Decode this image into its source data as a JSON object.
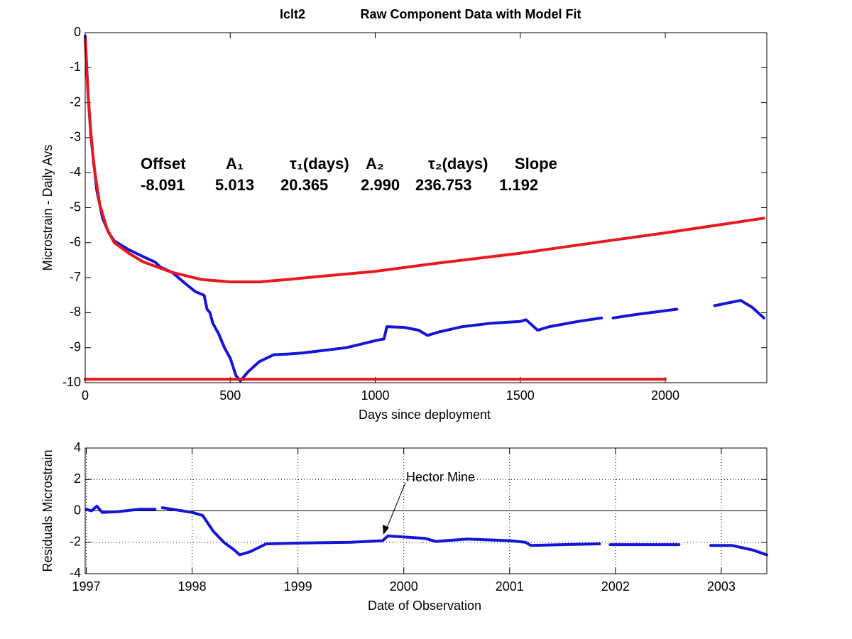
{
  "chart_data": [
    {
      "type": "line",
      "title": "Iclt2",
      "subtitle": "Raw Component Data with Model Fit",
      "x_label": "Days since deployment",
      "y_label": "Microstrain - Daily Avs",
      "xlim": [
        0,
        2350
      ],
      "xticks": [
        0,
        500,
        1000,
        1500,
        2000
      ],
      "ylim": [
        -10,
        0
      ],
      "yticks": [
        0,
        -1,
        -2,
        -3,
        -4,
        -5,
        -6,
        -7,
        -8,
        -9,
        -10
      ],
      "grid": false,
      "fit_parameters": {
        "names": [
          "Offset",
          "A₁",
          "τ₁(days)",
          "A₂",
          "τ₂(days)",
          "Slope"
        ],
        "values": [
          -8.091,
          5.013,
          20.365,
          {
            "value": 2.99,
            "label": "2.990"
          },
          236.753,
          1.192
        ]
      },
      "series": [
        {
          "color": "#1515d8",
          "x": [
            0,
            10,
            20,
            40,
            60,
            80,
            100,
            150,
            200,
            240,
            260,
            300,
            350,
            380,
            410,
            420,
            430,
            440,
            460,
            480,
            500,
            520,
            535,
            560,
            600,
            650,
            700,
            750,
            800,
            850,
            900,
            950,
            1000,
            1030,
            1040,
            1100,
            1150,
            1180,
            1220,
            1300,
            1400,
            1500,
            1520,
            1560,
            1600,
            1700,
            1780,
            1800,
            1820,
            1900,
            2040,
            2100,
            2170,
            2230,
            2260,
            2280,
            2300,
            2340
          ],
          "values": [
            -0.1,
            -1.8,
            -3.0,
            -4.5,
            -5.3,
            -5.7,
            -5.95,
            -6.2,
            -6.4,
            -6.55,
            -6.7,
            -6.85,
            -7.2,
            -7.4,
            -7.5,
            -7.9,
            -8.0,
            -8.3,
            -8.6,
            -9.0,
            -9.3,
            -9.8,
            -9.95,
            -9.7,
            -9.4,
            -9.2,
            -9.18,
            -9.15,
            -9.1,
            -9.05,
            -9.0,
            -8.9,
            -8.8,
            -8.75,
            -8.4,
            -8.42,
            -8.5,
            -8.65,
            -8.55,
            -8.4,
            -8.3,
            -8.25,
            -8.2,
            -8.5,
            -8.4,
            -8.25,
            -8.15,
            null,
            -8.15,
            -8.05,
            -7.9,
            null,
            -7.8,
            -7.7,
            -7.65,
            -7.75,
            -7.85,
            -8.15
          ]
        },
        {
          "color": "#e8191e",
          "x": [
            0,
            10,
            20,
            30,
            50,
            75,
            100,
            150,
            200,
            300,
            400,
            500,
            600,
            700,
            800,
            1000,
            1200,
            1500,
            1800,
            2000,
            2340
          ],
          "values": [
            -0.2,
            -1.8,
            -2.9,
            -3.8,
            -4.9,
            -5.6,
            -6.0,
            -6.3,
            -6.55,
            -6.85,
            -7.05,
            -7.12,
            -7.12,
            -7.05,
            -6.97,
            -6.82,
            -6.6,
            -6.3,
            -5.95,
            -5.72,
            -5.3
          ]
        },
        {
          "color": "#e8191e",
          "x": [
            0,
            2000
          ],
          "values": [
            -9.9,
            -9.9
          ]
        }
      ]
    },
    {
      "type": "line",
      "x_label": "Date of Observation",
      "y_label": "Residuals Microstrain",
      "xlim": [
        1996.99,
        2003.43
      ],
      "xticks": [
        1997,
        1998,
        1999,
        2000,
        2001,
        2002,
        2003
      ],
      "ylim": [
        -4,
        4
      ],
      "yticks": [
        -4,
        -2,
        0,
        2,
        4
      ],
      "grid": true,
      "zero_line": true,
      "annotation": "Hector Mine",
      "series": [
        {
          "color": "#1515d8",
          "x": [
            1997.0,
            1997.05,
            1997.1,
            1997.15,
            1997.3,
            1997.5,
            1997.65,
            1997.7,
            1997.72,
            1998.0,
            1998.1,
            1998.2,
            1998.3,
            1998.4,
            1998.45,
            1998.55,
            1998.7,
            1999.0,
            1999.5,
            1999.8,
            1999.85,
            2000.2,
            2000.3,
            2000.6,
            2001.0,
            2001.15,
            2001.2,
            2001.5,
            2001.85,
            2001.9,
            2001.95,
            2002.6,
            2002.7,
            2002.9,
            2003.1,
            2003.2,
            2003.3,
            2003.43
          ],
          "values": [
            0.1,
            0.0,
            0.3,
            -0.1,
            -0.05,
            0.1,
            0.1,
            null,
            0.2,
            -0.1,
            -0.3,
            -1.3,
            -2.0,
            -2.5,
            -2.8,
            -2.6,
            -2.1,
            -2.05,
            -2.0,
            -1.9,
            -1.6,
            -1.75,
            -1.95,
            -1.8,
            -1.9,
            -2.0,
            -2.2,
            -2.15,
            -2.1,
            null,
            -2.15,
            -2.15,
            null,
            -2.2,
            -2.2,
            -2.35,
            -2.5,
            -2.8
          ]
        }
      ]
    }
  ]
}
